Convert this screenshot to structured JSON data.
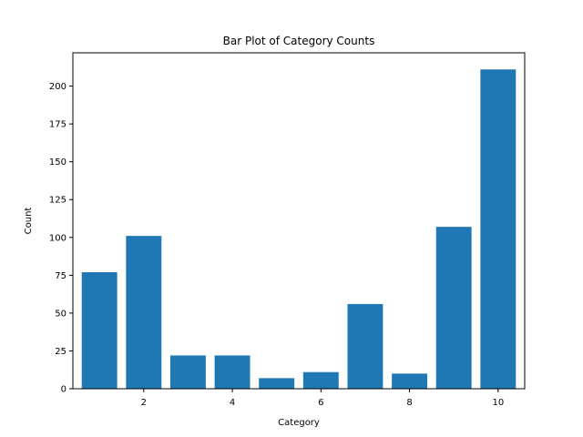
{
  "chart_data": {
    "type": "bar",
    "title": "Bar Plot of Category Counts",
    "xlabel": "Category",
    "ylabel": "Count",
    "categories": [
      1,
      2,
      3,
      4,
      5,
      6,
      7,
      8,
      9,
      10
    ],
    "values": [
      77,
      101,
      22,
      22,
      7,
      11,
      56,
      10,
      107,
      211
    ],
    "xlim": [
      0.4,
      10.6
    ],
    "ylim": [
      0,
      222
    ],
    "xticks": [
      2,
      4,
      6,
      8,
      10
    ],
    "yticks": [
      0,
      25,
      50,
      75,
      100,
      125,
      150,
      175,
      200
    ],
    "grid": false,
    "bar_color": "#1f77b4"
  }
}
